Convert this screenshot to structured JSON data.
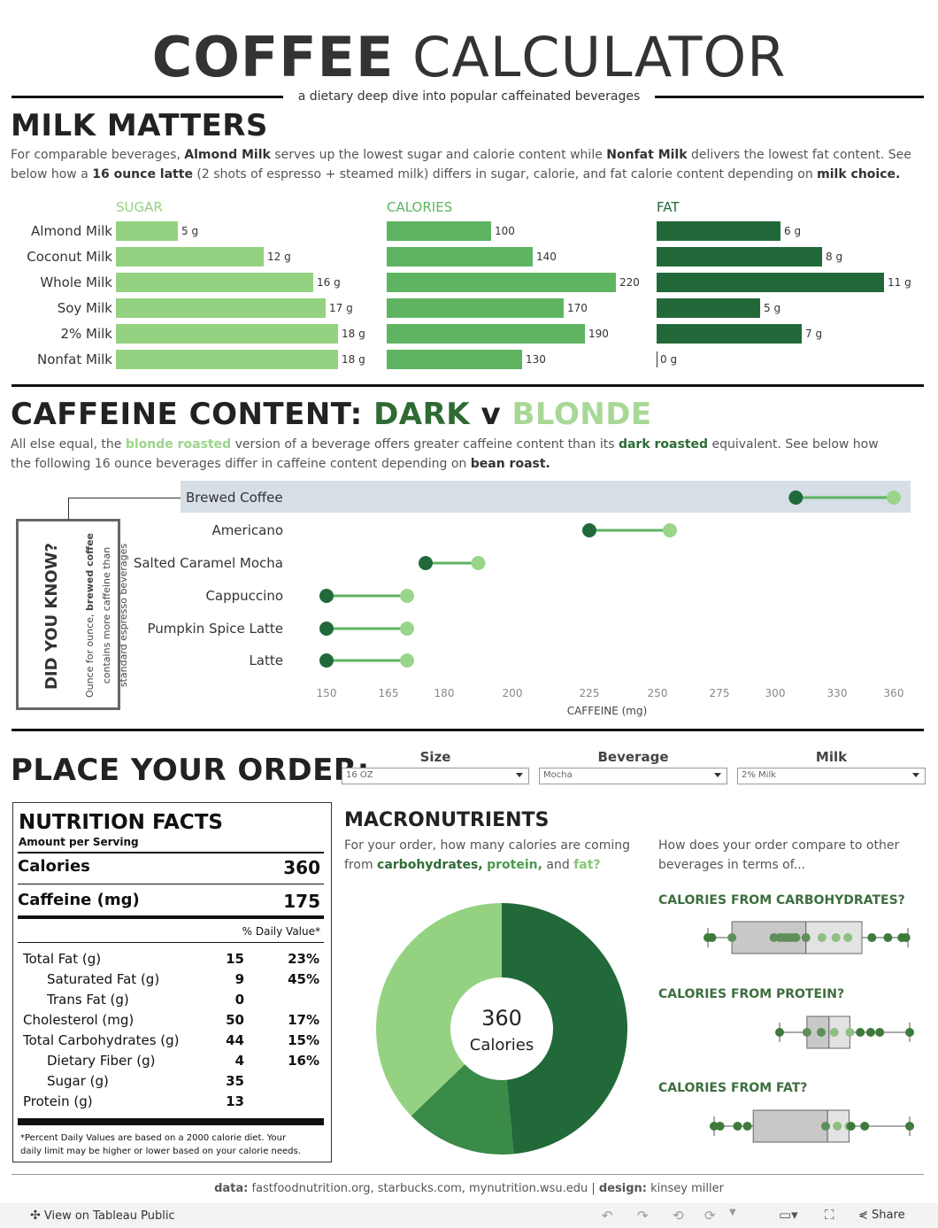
{
  "header": {
    "title_bold": "COFFEE",
    "title_light": "CALCULATOR",
    "subtitle": "a dietary deep dive into popular caffeinated beverages"
  },
  "milk": {
    "heading": "MILK MATTERS",
    "para": {
      "p1": "For comparable beverages, ",
      "b1": "Almond Milk",
      "p2": " serves up the lowest sugar and calorie content while ",
      "b2": "Nonfat Milk",
      "p3": " delivers the lowest fat content. See below how a ",
      "b3": "16 ounce latte",
      "p4": " (2 shots of espresso + steamed milk) differs in sugar, calorie, and fat calorie content depending on ",
      "b4": "milk choice."
    },
    "columns": {
      "sugar": "SUGAR",
      "calories": "CALORIES",
      "fat": "FAT"
    },
    "colors": {
      "sugar": "#94d282",
      "calories": "#5fb461",
      "fat": "#22693a"
    }
  },
  "caffeine": {
    "heading_prefix": "CAFFEINE CONTENT: ",
    "heading_dark": "DARK",
    "heading_v": " v ",
    "heading_blonde": "BLONDE",
    "para": {
      "p1": "All else equal, the ",
      "b1": "blonde roasted",
      "p2": " version of a beverage offers greater caffeine content than its ",
      "b2": "dark roasted",
      "p3": " equivalent. See below how the following 16 ounce beverages differ in caffeine content depending on ",
      "b3": "bean roast."
    },
    "did_you_know": {
      "title": "DID YOU KNOW?",
      "line1_pre": "Ounce for ounce, ",
      "line1_b": "brewed coffee",
      "line2": "contains more caffeine than",
      "line3": "standard espresso beverages"
    },
    "colors": {
      "dark": "#22693a",
      "blonde": "#9bd58a",
      "line": "#5fb461",
      "highlight": "#d6dee6"
    }
  },
  "order": {
    "heading": "PLACE YOUR ORDER:",
    "filters": [
      {
        "label": "Size",
        "value": "16 OZ"
      },
      {
        "label": "Beverage",
        "value": "Mocha"
      },
      {
        "label": "Milk",
        "value": "2% Milk"
      }
    ]
  },
  "nutrition": {
    "title": "NUTRITION FACTS",
    "subtitle": "Amount per Serving",
    "calories_label": "Calories",
    "calories_value": "360",
    "caffeine_label": "Caffeine (mg)",
    "caffeine_value": "175",
    "dv_header": "% Daily Value*",
    "rows": [
      {
        "label": "Total Fat (g)",
        "amount": "15",
        "dv": "23%",
        "indent": false
      },
      {
        "label": "Saturated Fat (g)",
        "amount": "9",
        "dv": "45%",
        "indent": true
      },
      {
        "label": "Trans Fat (g)",
        "amount": "0",
        "dv": "",
        "indent": true
      },
      {
        "label": "Cholesterol (mg)",
        "amount": "50",
        "dv": "17%",
        "indent": false
      },
      {
        "label": "Total Carbohydrates (g)",
        "amount": "44",
        "dv": "15%",
        "indent": false
      },
      {
        "label": "Dietary Fiber (g)",
        "amount": "4",
        "dv": "16%",
        "indent": true
      },
      {
        "label": "Sugar (g)",
        "amount": "35",
        "dv": "",
        "indent": true
      },
      {
        "label": "Protein (g)",
        "amount": "13",
        "dv": "",
        "indent": false
      }
    ],
    "footnote1": "*Percent Daily Values are based on a 2000 calorie diet. Your",
    "footnote2": "daily limit may be higher or lower based on your calorie needs."
  },
  "macros": {
    "heading": "MACRONUTRIENTS",
    "para": {
      "p1": "For your order, how many calories are coming from ",
      "carbs": "carbohydrates,",
      "protein": "protein,",
      "and": " and ",
      "fat": "fat?"
    },
    "center_value": "360",
    "center_label": "Calories",
    "compare_intro": "How does your order compare to other beverages in terms of...",
    "compare_titles": [
      "CALORIES FROM CARBOHYDRATES?",
      "CALORIES FROM PROTEIN?",
      "CALORIES FROM FAT?"
    ]
  },
  "footer": {
    "data_label": "data:",
    "data_sources": " fastfoodnutrition.org, starbucks.com, mynutrition.wsu.edu | ",
    "design_label": "design:",
    "designer": " kinsey miller",
    "view_on": "View on Tableau Public",
    "share": "Share"
  },
  "chart_data": [
    {
      "type": "bar",
      "title": "SUGAR",
      "categories": [
        "Almond Milk",
        "Coconut Milk",
        "Whole Milk",
        "Soy Milk",
        "2% Milk",
        "Nonfat Milk"
      ],
      "values": [
        5,
        12,
        16,
        17,
        18,
        18
      ],
      "labels": [
        "5 g",
        "12 g",
        "16 g",
        "17 g",
        "18 g",
        "18 g"
      ]
    },
    {
      "type": "bar",
      "title": "CALORIES",
      "categories": [
        "Almond Milk",
        "Coconut Milk",
        "Whole Milk",
        "Soy Milk",
        "2% Milk",
        "Nonfat Milk"
      ],
      "values": [
        100,
        140,
        220,
        170,
        190,
        130
      ],
      "labels": [
        "100",
        "140",
        "220",
        "170",
        "190",
        "130"
      ]
    },
    {
      "type": "bar",
      "title": "FAT",
      "categories": [
        "Almond Milk",
        "Coconut Milk",
        "Whole Milk",
        "Soy Milk",
        "2% Milk",
        "Nonfat Milk"
      ],
      "values": [
        6,
        8,
        11,
        5,
        7,
        0
      ],
      "labels": [
        "6 g",
        "8 g",
        "11 g",
        "5 g",
        "7 g",
        "0 g"
      ]
    },
    {
      "type": "scatter",
      "subtype": "dumbbell",
      "xlabel": "CAFFEINE (mg)",
      "x_ticks": [
        150,
        165,
        180,
        200,
        225,
        250,
        275,
        300,
        330,
        360
      ],
      "categories": [
        "Brewed Coffee",
        "Americano",
        "Salted Caramel Mocha",
        "Cappuccino",
        "Pumpkin Spice Latte",
        "Latte"
      ],
      "highlighted": "Brewed Coffee",
      "series": [
        {
          "name": "DARK",
          "values": [
            310,
            225,
            175,
            150,
            150,
            150
          ]
        },
        {
          "name": "BLONDE",
          "values": [
            360,
            255,
            190,
            170,
            170,
            170
          ]
        }
      ]
    },
    {
      "type": "pie",
      "subtype": "donut",
      "slices": [
        {
          "name": "carbohydrates",
          "value": 176,
          "color": "#22693a"
        },
        {
          "name": "protein",
          "value": 52,
          "color": "#3a8a48"
        },
        {
          "name": "fat",
          "value": 135,
          "color": "#94d282"
        }
      ]
    },
    {
      "type": "scatter",
      "subtype": "strip-with-box",
      "title": "CALORIES FROM CARBOHYDRATES?",
      "range": [
        0,
        1
      ],
      "box": [
        0.12,
        0.77
      ],
      "median": 0.49,
      "points": [
        0.0,
        0.02,
        0.12,
        0.33,
        0.36,
        0.38,
        0.4,
        0.42,
        0.44,
        0.49,
        0.57,
        0.64,
        0.7,
        0.82,
        0.9,
        0.97,
        0.99
      ]
    },
    {
      "type": "scatter",
      "subtype": "strip-with-box",
      "title": "CALORIES FROM PROTEIN?",
      "range": [
        0,
        1
      ],
      "box": [
        0.21,
        0.54
      ],
      "median": 0.38,
      "points": [
        0.0,
        0.21,
        0.32,
        0.42,
        0.54,
        0.62,
        0.7,
        0.77,
        1.0
      ]
    },
    {
      "type": "scatter",
      "subtype": "strip-with-box",
      "title": "CALORIES FROM FAT?",
      "range": [
        0,
        1
      ],
      "box": [
        0.2,
        0.69
      ],
      "median": 0.58,
      "points": [
        0.0,
        0.03,
        0.12,
        0.17,
        0.57,
        0.63,
        0.69,
        0.7,
        0.77,
        1.0
      ]
    }
  ]
}
